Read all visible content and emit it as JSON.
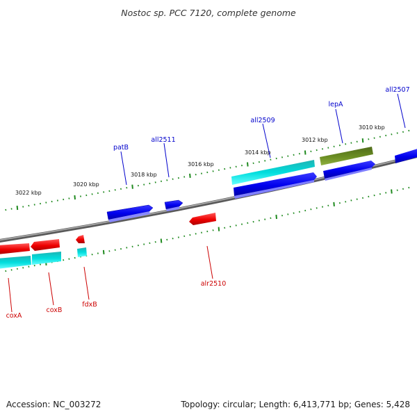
{
  "title": "Nostoc sp. PCC 7120, complete genome",
  "footer": {
    "accession": "Accession: NC_003272",
    "summary": "Topology: circular; Length: 6,413,771 bp; Genes: 5,428"
  },
  "colors": {
    "backbone": "#808080",
    "tick": "#1f8a1f",
    "plus_gene_label": "#0000cc",
    "minus_gene_label": "#cc0000",
    "blue_gene": "#0000ee",
    "red_gene": "#ee0000",
    "cyan_gene": "#00cccc",
    "olive_gene": "#6b8e23"
  },
  "scale_labels": [
    "3022 kbp",
    "3020 kbp",
    "3018 kbp",
    "3016 kbp",
    "3014 kbp",
    "3012 kbp",
    "3010 kbp"
  ],
  "gene_labels": {
    "plus": [
      "patB",
      "all2511",
      "all2509",
      "lepA",
      "all2507"
    ],
    "minus": [
      "coxA",
      "coxB",
      "fdxB",
      "alr2510"
    ]
  }
}
